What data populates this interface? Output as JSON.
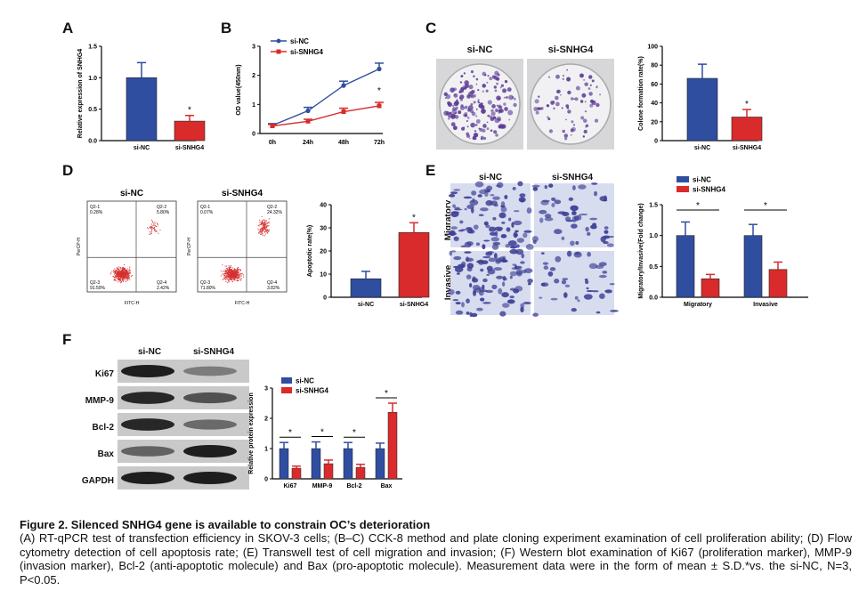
{
  "colors": {
    "nc": "#2f4ea0",
    "snhg4": "#d92b2b",
    "purple": "#5b3b93"
  },
  "panels": {
    "A": "A",
    "B": "B",
    "C": "C",
    "D": "D",
    "E": "E",
    "F": "F"
  },
  "panel_A": {
    "ylabel": "Relative expression of SNHG4",
    "yticks": [
      "0.0",
      "0.5",
      "1.0",
      "1.5"
    ],
    "sig": "*",
    "chart_data": {
      "type": "bar",
      "categories": [
        "si-NC",
        "si-SNHG4"
      ],
      "values": [
        1.0,
        0.31
      ],
      "errors": [
        0.24,
        0.09
      ],
      "ylim": [
        0,
        1.5
      ]
    }
  },
  "panel_B": {
    "ylabel": "OD value(450nm)",
    "yticks": [
      "0",
      "1",
      "2",
      "3"
    ],
    "legend": [
      "si-NC",
      "si-SNHG4"
    ],
    "sig": "*",
    "chart_data": {
      "type": "line",
      "x": [
        "0h",
        "24h",
        "48h",
        "72h"
      ],
      "ylim": [
        0,
        3
      ],
      "series": [
        {
          "name": "si-NC",
          "values": [
            0.28,
            0.78,
            1.65,
            2.22
          ],
          "errors": [
            0.06,
            0.12,
            0.15,
            0.2
          ]
        },
        {
          "name": "si-SNHG4",
          "values": [
            0.26,
            0.42,
            0.75,
            0.95
          ],
          "errors": [
            0.05,
            0.07,
            0.12,
            0.12
          ]
        }
      ]
    }
  },
  "panel_C": {
    "plate_labels": [
      "si-NC",
      "si-SNHG4"
    ],
    "ylabel": "Colone formation rate(%)",
    "yticks": [
      "0",
      "20",
      "40",
      "60",
      "80",
      "100"
    ],
    "sig": "*",
    "chart_data": {
      "type": "bar",
      "categories": [
        "si-NC",
        "si-SNHG4"
      ],
      "values": [
        66,
        25
      ],
      "errors": [
        15,
        8
      ],
      "ylim": [
        0,
        100
      ]
    }
  },
  "panel_D": {
    "flow": [
      {
        "title": "si-NC",
        "q1": "Q2-1",
        "q1v": "0.28%",
        "q2": "Q2-2",
        "q2v": "5.80%",
        "q3": "Q2-3",
        "q3v": "91.50%",
        "q4": "Q2-4",
        "q4v": "2.42%"
      },
      {
        "title": "si-SNHG4",
        "q1": "Q2-1",
        "q1v": "0.07%",
        "q2": "Q2-2",
        "q2v": "24.32%",
        "q3": "Q2-3",
        "q3v": "71.80%",
        "q4": "Q2-4",
        "q4v": "3.82%"
      }
    ],
    "flow_ylabel": "PerCP-H",
    "flow_xlabel": "FITC-H",
    "ylabel": "Apoptotic rate(%)",
    "yticks": [
      "0",
      "10",
      "20",
      "30",
      "40"
    ],
    "sig": "*",
    "chart_data": {
      "type": "bar",
      "categories": [
        "si-NC",
        "si-SNHG4"
      ],
      "values": [
        8,
        28
      ],
      "errors": [
        3.2,
        4.2
      ],
      "ylim": [
        0,
        40
      ]
    }
  },
  "panel_E": {
    "col_labels": [
      "si-NC",
      "si-SNHG4"
    ],
    "row_labels": [
      "Migratory",
      "Invasive"
    ],
    "legend": [
      "si-NC",
      "si-SNHG4"
    ],
    "ylabel": "Migratory/Invasive(Fold change)",
    "yticks": [
      "0.0",
      "0.5",
      "1.0",
      "1.5"
    ],
    "sig": [
      "*",
      "*"
    ],
    "chart_data": {
      "type": "bar",
      "categories": [
        "Migratory",
        "Invasive"
      ],
      "ylim": [
        0,
        1.5
      ],
      "series": [
        {
          "name": "si-NC",
          "values": [
            1.0,
            1.0
          ],
          "errors": [
            0.22,
            0.18
          ]
        },
        {
          "name": "si-SNHG4",
          "values": [
            0.3,
            0.45
          ],
          "errors": [
            0.07,
            0.12
          ]
        }
      ]
    }
  },
  "panel_F": {
    "col_labels": [
      "si-NC",
      "si-SNHG4"
    ],
    "row_labels": [
      "Ki67",
      "MMP-9",
      "Bcl-2",
      "Bax",
      "GAPDH"
    ],
    "legend": [
      "si-NC",
      "si-SNHG4"
    ],
    "ylabel": "Relative protein expression",
    "yticks": [
      "0",
      "1",
      "2",
      "3"
    ],
    "sig": [
      "*",
      "*",
      "*",
      "*"
    ],
    "chart_data": {
      "type": "bar",
      "categories": [
        "Ki67",
        "MMP-9",
        "Bcl-2",
        "Bax"
      ],
      "ylim": [
        0,
        3
      ],
      "series": [
        {
          "name": "si-NC",
          "values": [
            1.0,
            1.0,
            1.0,
            1.0
          ],
          "errors": [
            0.2,
            0.22,
            0.2,
            0.18
          ]
        },
        {
          "name": "si-SNHG4",
          "values": [
            0.35,
            0.5,
            0.38,
            2.2
          ],
          "errors": [
            0.07,
            0.12,
            0.1,
            0.3
          ]
        }
      ]
    }
  },
  "caption": {
    "title": "Figure 2. Silenced SNHG4 gene is available to constrain OC’s deterioration",
    "body": "(A) RT-qPCR test of transfection efficiency in SKOV-3 cells; (B–C) CCK-8 method and plate cloning experiment examination of cell proliferation ability; (D) Flow cytometry detection of cell apoptosis rate; (E) Transwell test of cell migration and invasion; (F) Western blot examination of Ki67 (proliferation marker), MMP-9 (invasion marker), Bcl-2 (anti-apoptotic molecule) and Bax (pro-apoptotic molecule). Measurement data were in the form of mean ± S.D.*vs. the si-NC, N=3, P<0.05."
  }
}
